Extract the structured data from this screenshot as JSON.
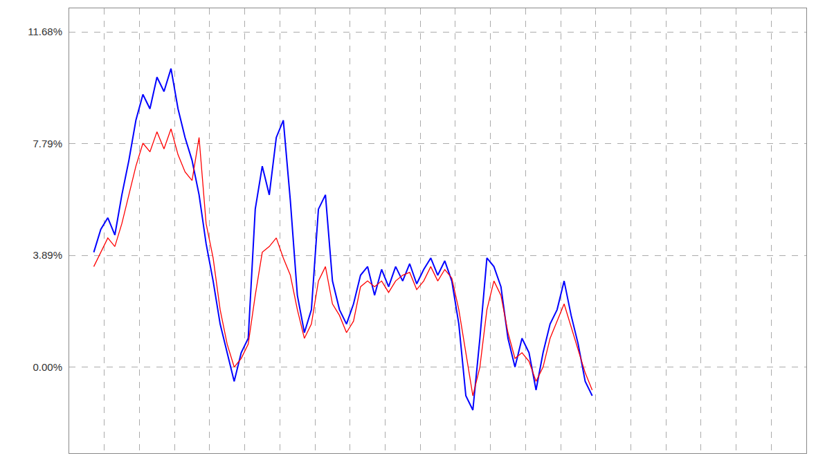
{
  "chart_data": {
    "type": "line",
    "x": [
      7,
      9,
      11,
      13,
      15,
      17,
      19,
      21,
      23,
      25,
      27,
      29,
      31,
      33,
      35,
      37,
      39,
      41,
      43,
      45,
      47,
      49,
      51,
      53,
      55,
      57,
      59,
      61,
      63,
      65,
      67,
      69,
      71,
      73,
      75,
      77,
      79,
      81,
      83,
      85,
      87,
      89,
      91,
      93,
      95,
      97,
      99,
      101,
      103,
      105,
      107,
      109,
      111,
      113,
      115,
      117,
      119,
      121,
      123,
      125,
      127,
      129,
      131,
      133,
      135,
      137,
      139,
      141,
      143,
      145,
      147,
      149
    ],
    "series": [
      {
        "color": "#0000ff",
        "values": [
          4.0,
          4.8,
          5.2,
          4.6,
          6.0,
          7.2,
          8.6,
          9.5,
          9.0,
          10.1,
          9.6,
          10.4,
          9.0,
          8.0,
          7.2,
          6.0,
          4.3,
          3.0,
          1.5,
          0.5,
          -0.5,
          0.5,
          1.0,
          5.5,
          7.0,
          6.0,
          8.0,
          8.6,
          5.8,
          2.5,
          1.2,
          2.0,
          5.5,
          6.0,
          3.0,
          2.0,
          1.5,
          2.2,
          3.2,
          3.5,
          2.5,
          3.4,
          2.8,
          3.5,
          3.0,
          3.6,
          2.9,
          3.4,
          3.8,
          3.2,
          3.7,
          3.0,
          1.5,
          -1.0,
          -1.5,
          1.0,
          3.8,
          3.5,
          2.8,
          1.0,
          0.0,
          1.0,
          0.5,
          -0.8,
          0.5,
          1.5,
          2.0,
          3.0,
          1.8,
          0.8,
          -0.5,
          -1.0
        ]
      },
      {
        "color": "#ff0000",
        "values": [
          3.5,
          4.0,
          4.5,
          4.2,
          5.0,
          6.0,
          7.0,
          7.8,
          7.5,
          8.2,
          7.6,
          8.3,
          7.4,
          6.8,
          6.5,
          8.0,
          5.0,
          3.8,
          2.0,
          0.8,
          0.0,
          0.3,
          0.8,
          2.5,
          4.0,
          4.2,
          4.5,
          3.8,
          3.2,
          2.0,
          1.0,
          1.5,
          3.0,
          3.5,
          2.2,
          1.8,
          1.2,
          1.6,
          2.8,
          3.0,
          2.8,
          3.0,
          2.6,
          3.0,
          3.2,
          3.3,
          2.7,
          3.0,
          3.5,
          3.0,
          3.4,
          3.1,
          2.0,
          0.5,
          -1.0,
          0.0,
          2.0,
          3.0,
          2.5,
          1.2,
          0.3,
          0.5,
          0.2,
          -0.5,
          0.0,
          1.0,
          1.6,
          2.2,
          1.4,
          0.6,
          -0.2,
          -0.8
        ]
      }
    ],
    "xlim": [
      0,
      210
    ],
    "xticks": [
      0,
      10,
      20,
      30,
      40,
      50,
      60,
      70,
      80,
      90,
      100,
      110,
      120,
      130,
      140,
      150,
      160,
      170,
      180,
      190,
      200,
      210
    ],
    "ylim": [
      -3.0,
      12.5
    ],
    "yticks": [
      {
        "value": 0,
        "label": "0.00%"
      },
      {
        "value": 3.89,
        "label": "3.89%"
      },
      {
        "value": 7.79,
        "label": "7.79%"
      },
      {
        "value": 11.68,
        "label": "11.68%"
      }
    ],
    "grid": true,
    "tick_labels": "y"
  }
}
